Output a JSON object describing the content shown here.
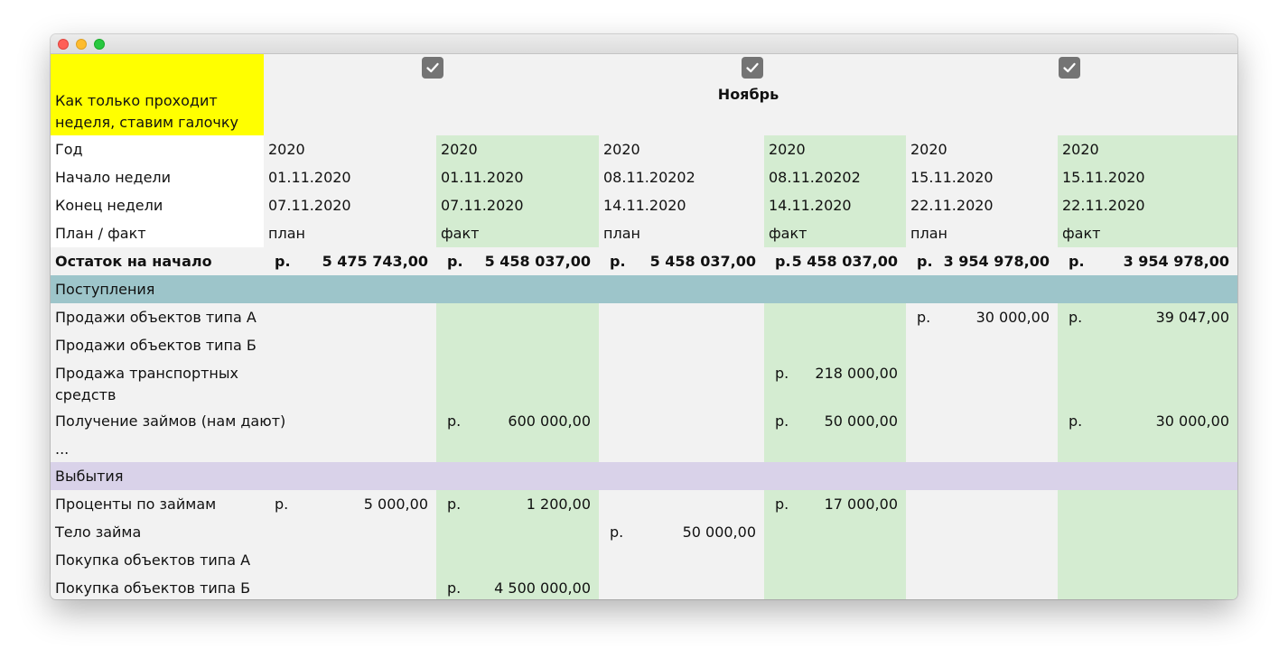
{
  "note": "Как только проходит\nнеделя, ставим галочку",
  "month": "Ноябрь",
  "currency": "р.",
  "labels": {
    "year": "Год",
    "week_start": "Начало недели",
    "week_end": "Конец недели",
    "plan_fact": "План / факт",
    "opening_balance": "Остаток на начало"
  },
  "columns": [
    {
      "year": "2020",
      "start": "01.11.2020",
      "end": "07.11.2020",
      "type": "план"
    },
    {
      "year": "2020",
      "start": "01.11.2020",
      "end": "07.11.2020",
      "type": "факт"
    },
    {
      "year": "2020",
      "start": "08.11.20202",
      "end": "14.11.2020",
      "type": "план"
    },
    {
      "year": "2020",
      "start": "08.11.20202",
      "end": "14.11.2020",
      "type": "факт"
    },
    {
      "year": "2020",
      "start": "15.11.2020",
      "end": "22.11.2020",
      "type": "план"
    },
    {
      "year": "2020",
      "start": "15.11.2020",
      "end": "22.11.2020",
      "type": "факт"
    }
  ],
  "opening": [
    "5 475 743,00",
    "5 458 037,00",
    "5 458 037,00",
    "5 458 037,00",
    "3 954 978,00",
    "3 954 978,00"
  ],
  "sections": {
    "income": "Поступления",
    "expense": "Выбытия"
  },
  "income_rows": [
    {
      "label": "Продажи объектов типа А",
      "values": [
        "",
        "",
        "",
        "",
        "30 000,00",
        "39 047,00"
      ]
    },
    {
      "label": "Продажи объектов типа Б",
      "values": [
        "",
        "",
        "",
        "",
        "",
        ""
      ]
    },
    {
      "label": "Продажа транспортных средств",
      "values": [
        "",
        "",
        "",
        "218 000,00",
        "",
        ""
      ]
    },
    {
      "label": "Получение займов (нам дают)",
      "values": [
        "",
        "600 000,00",
        "",
        "50 000,00",
        "",
        "30 000,00"
      ]
    },
    {
      "label": "...",
      "values": [
        "",
        "",
        "",
        "",
        "",
        ""
      ]
    }
  ],
  "expense_rows": [
    {
      "label": "Проценты по займам",
      "values": [
        "5 000,00",
        "1 200,00",
        "",
        "17 000,00",
        "",
        ""
      ]
    },
    {
      "label": "Тело займа",
      "values": [
        "",
        "",
        "50 000,00",
        "",
        "",
        ""
      ]
    },
    {
      "label": "Покупка объектов типа А",
      "values": [
        "",
        "",
        "",
        "",
        "",
        ""
      ]
    },
    {
      "label": "Покупка объектов типа Б",
      "values": [
        "",
        "4 500 000,00",
        "",
        "",
        "",
        ""
      ]
    }
  ],
  "colors": {
    "note_bg": "#ffff00",
    "fact_bg": "#d4ecd1",
    "income_band": "#9dc5ca",
    "expense_band": "#d9d2e9",
    "checkbox": "#747474"
  }
}
